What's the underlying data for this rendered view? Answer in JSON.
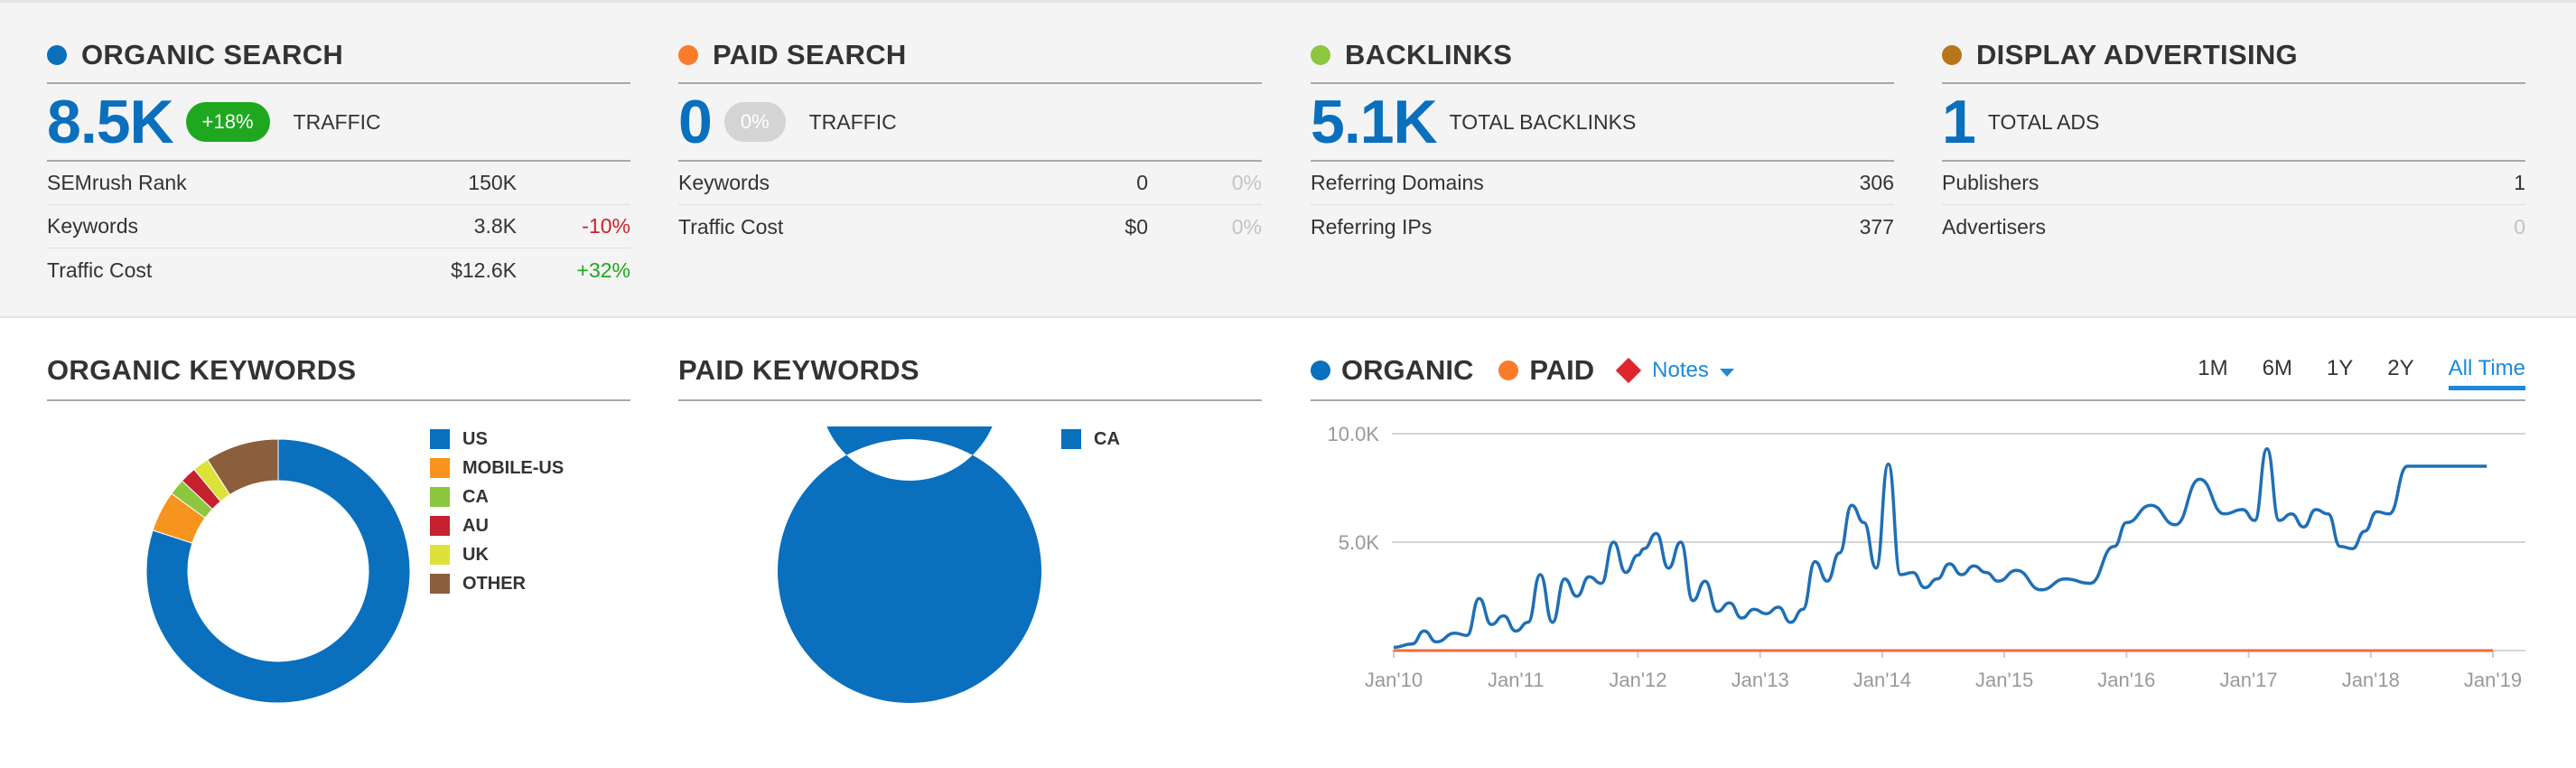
{
  "cards": [
    {
      "title": "ORGANIC SEARCH",
      "dot_color": "#0a6fbd",
      "big": "8.5K",
      "badge": "+18%",
      "metric_label": "TRAFFIC",
      "rows": [
        {
          "label": "SEMrush Rank",
          "value": "150K",
          "change": ""
        },
        {
          "label": "Keywords",
          "value": "3.8K",
          "change": "-10%"
        },
        {
          "label": "Traffic Cost",
          "value": "$12.6K",
          "change": "+32%"
        }
      ]
    },
    {
      "title": "PAID SEARCH",
      "dot_color": "#f97c2b",
      "big": "0",
      "badge": "0%",
      "metric_label": "TRAFFIC",
      "rows": [
        {
          "label": "Keywords",
          "value": "0",
          "change": "0%"
        },
        {
          "label": "Traffic Cost",
          "value": "$0",
          "change": "0%"
        }
      ]
    },
    {
      "title": "BACKLINKS",
      "dot_color": "#8dc63f",
      "big": "5.1K",
      "metric_label": "TOTAL BACKLINKS",
      "rows": [
        {
          "label": "Referring Domains",
          "value": "306"
        },
        {
          "label": "Referring IPs",
          "value": "377"
        }
      ]
    },
    {
      "title": "DISPLAY ADVERTISING",
      "dot_color": "#b7761c",
      "big": "1",
      "metric_label": "TOTAL ADS",
      "rows": [
        {
          "label": "Publishers",
          "value": "1"
        },
        {
          "label": "Advertisers",
          "value": "0"
        }
      ]
    }
  ],
  "organic_keywords": {
    "title": "ORGANIC KEYWORDS"
  },
  "paid_keywords": {
    "title": "PAID KEYWORDS"
  },
  "trend": {
    "organic_label": "ORGANIC",
    "paid_label": "PAID",
    "notes_label": "Notes",
    "ranges": [
      "1M",
      "6M",
      "1Y",
      "2Y",
      "All Time"
    ],
    "active_range": "All Time"
  },
  "chart_data": [
    {
      "type": "pie",
      "title": "ORGANIC KEYWORDS",
      "categories": [
        "US",
        "MOBILE-US",
        "CA",
        "AU",
        "UK",
        "OTHER"
      ],
      "values": [
        80,
        5,
        2,
        2,
        2,
        9
      ],
      "colors": [
        "#0a6fbd",
        "#f7941d",
        "#8dc63f",
        "#c5212f",
        "#dde23a",
        "#8b5e3c"
      ],
      "legend": "right"
    },
    {
      "type": "pie",
      "title": "PAID KEYWORDS",
      "categories": [
        "CA"
      ],
      "values": [
        100
      ],
      "colors": [
        "#0a6fbd"
      ],
      "legend": "right"
    },
    {
      "type": "line",
      "x_ticks": [
        "Jan'10",
        "Jan'11",
        "Jan'12",
        "Jan'13",
        "Jan'14",
        "Jan'15",
        "Jan'16",
        "Jan'17",
        "Jan'18",
        "Jan'19"
      ],
      "y_ticks": [
        "10.0K",
        "5.0K"
      ],
      "ylim": [
        0,
        10000
      ],
      "grid": true,
      "series": [
        {
          "name": "ORGANIC",
          "color": "#1f6fb5",
          "x": [
            2010.0,
            2010.15,
            2010.25,
            2010.35,
            2010.5,
            2010.6,
            2010.7,
            2010.8,
            2010.9,
            2011.0,
            2011.1,
            2011.2,
            2011.3,
            2011.4,
            2011.5,
            2011.6,
            2011.7,
            2011.8,
            2011.9,
            2012.0,
            2012.05,
            2012.15,
            2012.25,
            2012.35,
            2012.45,
            2012.55,
            2012.65,
            2012.75,
            2012.85,
            2012.95,
            2013.05,
            2013.15,
            2013.25,
            2013.35,
            2013.45,
            2013.55,
            2013.65,
            2013.75,
            2013.85,
            2013.95,
            2014.05,
            2014.15,
            2014.25,
            2014.35,
            2014.45,
            2014.55,
            2014.65,
            2014.75,
            2014.85,
            2014.95,
            2015.1,
            2015.3,
            2015.5,
            2015.7,
            2015.9,
            2016.0,
            2016.2,
            2016.4,
            2016.6,
            2016.8,
            2016.95,
            2017.05,
            2017.15,
            2017.25,
            2017.35,
            2017.45,
            2017.55,
            2017.65,
            2017.75,
            2017.85,
            2017.95,
            2018.05,
            2018.15,
            2018.3,
            2018.45,
            2018.6,
            2018.75,
            2018.85,
            2018.95
          ],
          "y": [
            150,
            300,
            900,
            400,
            800,
            700,
            2400,
            1200,
            1600,
            900,
            1300,
            3500,
            1300,
            3300,
            2500,
            3400,
            3100,
            5000,
            3600,
            4400,
            4700,
            5400,
            3800,
            5000,
            2300,
            3200,
            1800,
            2200,
            1500,
            1900,
            1700,
            2000,
            1300,
            1900,
            4100,
            3200,
            4500,
            6700,
            5900,
            3800,
            8600,
            3500,
            3600,
            2900,
            3300,
            4000,
            3500,
            3900,
            3600,
            3200,
            3700,
            2800,
            3300,
            3100,
            4800,
            5900,
            6700,
            5800,
            7900,
            6300,
            6500,
            6000,
            9300,
            6000,
            6300,
            5700,
            6500,
            6300,
            4800,
            4700,
            5500,
            6400,
            6300,
            8500,
            8500,
            8500,
            8500,
            8500,
            8500
          ]
        },
        {
          "name": "PAID",
          "color": "#f26b3a",
          "x": [
            2010.0,
            2019.0
          ],
          "y": [
            0,
            0
          ]
        }
      ]
    }
  ]
}
